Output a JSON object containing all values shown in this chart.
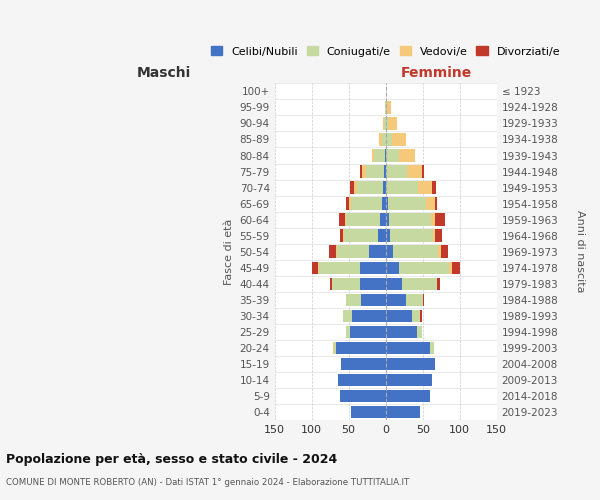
{
  "age_groups": [
    "0-4",
    "5-9",
    "10-14",
    "15-19",
    "20-24",
    "25-29",
    "30-34",
    "35-39",
    "40-44",
    "45-49",
    "50-54",
    "55-59",
    "60-64",
    "65-69",
    "70-74",
    "75-79",
    "80-84",
    "85-89",
    "90-94",
    "95-99",
    "100+"
  ],
  "birth_years": [
    "2019-2023",
    "2014-2018",
    "2009-2013",
    "2004-2008",
    "1999-2003",
    "1994-1998",
    "1989-1993",
    "1984-1988",
    "1979-1983",
    "1974-1978",
    "1969-1973",
    "1964-1968",
    "1959-1963",
    "1954-1958",
    "1949-1953",
    "1944-1948",
    "1939-1943",
    "1934-1938",
    "1929-1933",
    "1924-1928",
    "≤ 1923"
  ],
  "male_celibi": [
    47,
    62,
    65,
    60,
    67,
    48,
    45,
    33,
    35,
    35,
    23,
    11,
    7,
    5,
    3,
    2,
    1,
    0,
    0,
    0,
    0
  ],
  "male_coniugati": [
    0,
    0,
    0,
    0,
    3,
    5,
    12,
    20,
    37,
    55,
    43,
    45,
    47,
    42,
    36,
    24,
    15,
    5,
    2,
    1,
    0
  ],
  "male_vedovi": [
    0,
    0,
    0,
    0,
    1,
    0,
    0,
    0,
    0,
    1,
    1,
    1,
    1,
    2,
    4,
    6,
    3,
    4,
    2,
    0,
    0
  ],
  "male_divorziati": [
    0,
    0,
    0,
    0,
    0,
    0,
    0,
    1,
    3,
    8,
    9,
    5,
    8,
    5,
    5,
    3,
    0,
    0,
    0,
    0,
    0
  ],
  "female_celibi": [
    47,
    60,
    63,
    67,
    60,
    42,
    35,
    27,
    22,
    18,
    10,
    6,
    4,
    3,
    1,
    0,
    0,
    0,
    0,
    0,
    0
  ],
  "female_coniugati": [
    0,
    0,
    0,
    0,
    5,
    7,
    12,
    24,
    47,
    68,
    61,
    58,
    57,
    51,
    42,
    29,
    18,
    9,
    3,
    2,
    0
  ],
  "female_vedovi": [
    0,
    0,
    0,
    0,
    0,
    0,
    0,
    0,
    0,
    4,
    4,
    3,
    5,
    12,
    20,
    20,
    21,
    18,
    12,
    5,
    1
  ],
  "female_divorziati": [
    0,
    0,
    0,
    0,
    0,
    0,
    2,
    1,
    5,
    10,
    9,
    9,
    14,
    3,
    5,
    3,
    1,
    0,
    0,
    0,
    0
  ],
  "color_celibi": "#4472c4",
  "color_coniugati": "#c5d9a0",
  "color_vedovi": "#f5c87a",
  "color_divorziati": "#c0392b",
  "xlim": 150,
  "title": "Popolazione per età, sesso e stato civile - 2024",
  "subtitle": "COMUNE DI MONTE ROBERTO (AN) - Dati ISTAT 1° gennaio 2024 - Elaborazione TUTTITALIA.IT",
  "ylabel_left": "Fasce di età",
  "ylabel_right": "Anni di nascita",
  "xlabel_male": "Maschi",
  "xlabel_female": "Femmine",
  "bg_color": "#f5f5f5",
  "plot_bg": "#ffffff"
}
